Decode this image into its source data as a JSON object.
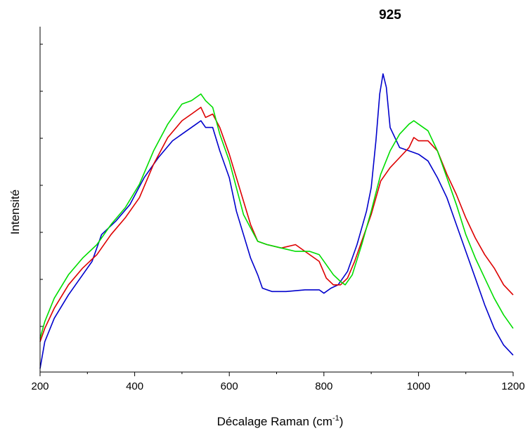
{
  "chart_data": {
    "type": "line",
    "title": "",
    "xlabel": "Décalage Raman (cm",
    "xlabel_sup": "-1",
    "xlabel_close": ")",
    "ylabel": "Intensité",
    "xlim": [
      200,
      1200
    ],
    "ylim": [
      0,
      100
    ],
    "x_ticks": [
      200,
      400,
      600,
      800,
      1000,
      1200
    ],
    "y_ticks_labeled": false,
    "grid": false,
    "legend": "none",
    "annotations": [
      {
        "text": "925",
        "x": 925
      }
    ],
    "series": [
      {
        "color": "#0000cc",
        "points": [
          [
            200,
            0
          ],
          [
            210,
            8
          ],
          [
            230,
            15
          ],
          [
            260,
            22
          ],
          [
            290,
            28
          ],
          [
            310,
            32
          ],
          [
            330,
            40
          ],
          [
            360,
            44
          ],
          [
            390,
            49
          ],
          [
            420,
            57
          ],
          [
            450,
            63
          ],
          [
            480,
            68
          ],
          [
            510,
            71
          ],
          [
            530,
            73
          ],
          [
            540,
            74
          ],
          [
            550,
            72
          ],
          [
            565,
            72
          ],
          [
            580,
            65
          ],
          [
            600,
            57
          ],
          [
            615,
            47
          ],
          [
            630,
            40
          ],
          [
            645,
            33
          ],
          [
            660,
            28
          ],
          [
            670,
            24
          ],
          [
            690,
            23
          ],
          [
            720,
            23
          ],
          [
            760,
            23.5
          ],
          [
            790,
            23.5
          ],
          [
            800,
            22.5
          ],
          [
            815,
            24
          ],
          [
            830,
            25
          ],
          [
            850,
            29
          ],
          [
            870,
            37
          ],
          [
            890,
            47
          ],
          [
            900,
            54
          ],
          [
            910,
            68
          ],
          [
            918,
            82
          ],
          [
            925,
            88
          ],
          [
            932,
            84
          ],
          [
            940,
            72
          ],
          [
            960,
            66
          ],
          [
            980,
            65
          ],
          [
            1000,
            64
          ],
          [
            1020,
            62
          ],
          [
            1040,
            57
          ],
          [
            1060,
            51
          ],
          [
            1080,
            43
          ],
          [
            1100,
            35
          ],
          [
            1120,
            27
          ],
          [
            1140,
            19
          ],
          [
            1160,
            12
          ],
          [
            1180,
            7
          ],
          [
            1200,
            4
          ]
        ]
      },
      {
        "color": "#dd0000",
        "points": [
          [
            200,
            8
          ],
          [
            210,
            12
          ],
          [
            230,
            18
          ],
          [
            260,
            25
          ],
          [
            290,
            30
          ],
          [
            320,
            34
          ],
          [
            350,
            40
          ],
          [
            380,
            45
          ],
          [
            410,
            51
          ],
          [
            440,
            61
          ],
          [
            470,
            69
          ],
          [
            500,
            74
          ],
          [
            520,
            76
          ],
          [
            540,
            78
          ],
          [
            550,
            75
          ],
          [
            565,
            76
          ],
          [
            580,
            72
          ],
          [
            600,
            64
          ],
          [
            615,
            57
          ],
          [
            630,
            50
          ],
          [
            645,
            43
          ],
          [
            660,
            38
          ],
          [
            680,
            37
          ],
          [
            710,
            36
          ],
          [
            740,
            37
          ],
          [
            760,
            35
          ],
          [
            790,
            32
          ],
          [
            805,
            27
          ],
          [
            820,
            25
          ],
          [
            835,
            25
          ],
          [
            850,
            27
          ],
          [
            865,
            32
          ],
          [
            880,
            38
          ],
          [
            900,
            46
          ],
          [
            920,
            56
          ],
          [
            940,
            60
          ],
          [
            960,
            63
          ],
          [
            980,
            66
          ],
          [
            990,
            69
          ],
          [
            1000,
            68
          ],
          [
            1020,
            68
          ],
          [
            1040,
            65
          ],
          [
            1060,
            58
          ],
          [
            1080,
            52
          ],
          [
            1100,
            45
          ],
          [
            1120,
            39
          ],
          [
            1140,
            34
          ],
          [
            1160,
            30
          ],
          [
            1180,
            25
          ],
          [
            1200,
            22
          ]
        ]
      },
      {
        "color": "#00dd00",
        "points": [
          [
            200,
            9
          ],
          [
            210,
            14
          ],
          [
            230,
            21
          ],
          [
            260,
            28
          ],
          [
            290,
            33
          ],
          [
            320,
            37
          ],
          [
            350,
            43
          ],
          [
            380,
            48
          ],
          [
            410,
            55
          ],
          [
            440,
            65
          ],
          [
            470,
            73
          ],
          [
            500,
            79
          ],
          [
            520,
            80
          ],
          [
            530,
            81
          ],
          [
            540,
            82
          ],
          [
            550,
            80
          ],
          [
            565,
            78
          ],
          [
            580,
            70
          ],
          [
            600,
            62
          ],
          [
            615,
            54
          ],
          [
            630,
            46
          ],
          [
            645,
            42
          ],
          [
            660,
            38
          ],
          [
            680,
            37
          ],
          [
            710,
            36
          ],
          [
            740,
            35
          ],
          [
            770,
            35
          ],
          [
            790,
            34
          ],
          [
            805,
            31
          ],
          [
            820,
            28
          ],
          [
            835,
            26
          ],
          [
            845,
            25
          ],
          [
            860,
            28
          ],
          [
            880,
            37
          ],
          [
            900,
            47
          ],
          [
            920,
            58
          ],
          [
            940,
            65
          ],
          [
            960,
            70
          ],
          [
            980,
            73
          ],
          [
            990,
            74
          ],
          [
            1000,
            73
          ],
          [
            1020,
            71
          ],
          [
            1040,
            65
          ],
          [
            1060,
            57
          ],
          [
            1080,
            49
          ],
          [
            1100,
            40
          ],
          [
            1120,
            33
          ],
          [
            1140,
            27
          ],
          [
            1160,
            21
          ],
          [
            1180,
            16
          ],
          [
            1200,
            12
          ]
        ]
      }
    ]
  }
}
